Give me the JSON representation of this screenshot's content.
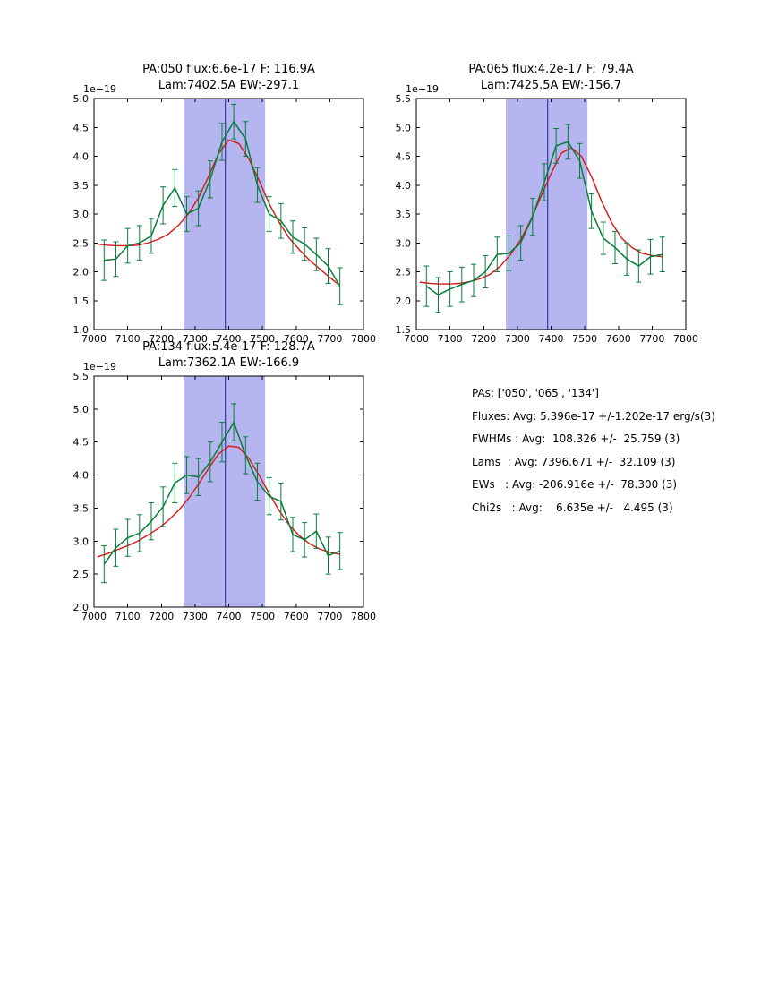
{
  "colors": {
    "data_line": "#077d3a",
    "fit_line": "#dc1414",
    "band": "#b5b5f0",
    "vline": "#1c1c9e",
    "frame": "#000000"
  },
  "chart_data": [
    {
      "type": "line",
      "title_line1": "PA:050 flux:6.6e-17 F: 116.9A",
      "title_line2": "Lam:7402.5A EW:-297.1",
      "offset_label": "1e−19",
      "xlim": [
        7000,
        7800
      ],
      "ylim": [
        1.0,
        5.0
      ],
      "xticks": [
        7000,
        7100,
        7200,
        7300,
        7400,
        7500,
        7600,
        7700,
        7800
      ],
      "xtick_labels": [
        "7000",
        "7100",
        "7200",
        "7300",
        "7400",
        "7500",
        "7600",
        "7700",
        "7800"
      ],
      "yticks": [
        1.0,
        1.5,
        2.0,
        2.5,
        3.0,
        3.5,
        4.0,
        4.5,
        5.0
      ],
      "ytick_labels": [
        "1.0",
        "1.5",
        "2.0",
        "2.5",
        "3.0",
        "3.5",
        "4.0",
        "4.5",
        "5.0"
      ],
      "band": [
        7266,
        7508
      ],
      "vline": 7390,
      "grid": false,
      "series": [
        {
          "name": "spectrum",
          "color_key": "data_line",
          "x": [
            7030,
            7065,
            7100,
            7135,
            7170,
            7205,
            7240,
            7275,
            7310,
            7345,
            7380,
            7415,
            7450,
            7485,
            7520,
            7555,
            7590,
            7625,
            7660,
            7695,
            7730
          ],
          "y": [
            2.2,
            2.22,
            2.45,
            2.5,
            2.62,
            3.15,
            3.45,
            3.0,
            3.1,
            3.6,
            4.25,
            4.6,
            4.3,
            3.5,
            3.0,
            2.88,
            2.6,
            2.48,
            2.3,
            2.1,
            1.75
          ],
          "yerr": [
            0.35,
            0.3,
            0.3,
            0.3,
            0.3,
            0.32,
            0.32,
            0.3,
            0.3,
            0.32,
            0.32,
            0.3,
            0.3,
            0.3,
            0.3,
            0.3,
            0.28,
            0.28,
            0.28,
            0.3,
            0.32
          ]
        },
        {
          "name": "gaussian-fit",
          "color_key": "fit_line",
          "x": [
            7010,
            7040,
            7070,
            7100,
            7130,
            7160,
            7190,
            7220,
            7250,
            7280,
            7310,
            7340,
            7370,
            7400,
            7430,
            7460,
            7490,
            7520,
            7550,
            7580,
            7610,
            7640,
            7670,
            7700,
            7730
          ],
          "y": [
            2.48,
            2.46,
            2.45,
            2.45,
            2.46,
            2.5,
            2.56,
            2.65,
            2.8,
            3.0,
            3.28,
            3.65,
            4.05,
            4.28,
            4.22,
            3.95,
            3.58,
            3.18,
            2.85,
            2.58,
            2.38,
            2.2,
            2.05,
            1.9,
            1.76
          ]
        }
      ]
    },
    {
      "type": "line",
      "title_line1": "PA:065 flux:4.2e-17 F: 79.4A",
      "title_line2": "Lam:7425.5A EW:-156.7",
      "offset_label": "1e−19",
      "xlim": [
        7000,
        7800
      ],
      "ylim": [
        1.5,
        5.5
      ],
      "xticks": [
        7000,
        7100,
        7200,
        7300,
        7400,
        7500,
        7600,
        7700,
        7800
      ],
      "xtick_labels": [
        "7000",
        "7100",
        "7200",
        "7300",
        "7400",
        "7500",
        "7600",
        "7700",
        "7800"
      ],
      "yticks": [
        1.5,
        2.0,
        2.5,
        3.0,
        3.5,
        4.0,
        4.5,
        5.0,
        5.5
      ],
      "ytick_labels": [
        "1.5",
        "2.0",
        "2.5",
        "3.0",
        "3.5",
        "4.0",
        "4.5",
        "5.0",
        "5.5"
      ],
      "band": [
        7266,
        7508
      ],
      "vline": 7390,
      "grid": false,
      "series": [
        {
          "name": "spectrum",
          "color_key": "data_line",
          "x": [
            7030,
            7065,
            7100,
            7135,
            7170,
            7205,
            7240,
            7275,
            7310,
            7345,
            7380,
            7415,
            7450,
            7485,
            7520,
            7555,
            7590,
            7625,
            7660,
            7695,
            7730
          ],
          "y": [
            2.25,
            2.1,
            2.2,
            2.28,
            2.35,
            2.5,
            2.8,
            2.82,
            3.0,
            3.45,
            4.05,
            4.68,
            4.75,
            4.42,
            3.55,
            3.08,
            2.92,
            2.72,
            2.6,
            2.76,
            2.8
          ],
          "yerr": [
            0.35,
            0.3,
            0.3,
            0.3,
            0.28,
            0.28,
            0.3,
            0.3,
            0.3,
            0.32,
            0.32,
            0.3,
            0.3,
            0.3,
            0.3,
            0.28,
            0.28,
            0.28,
            0.28,
            0.3,
            0.3
          ]
        },
        {
          "name": "gaussian-fit",
          "color_key": "fit_line",
          "x": [
            7010,
            7040,
            7070,
            7100,
            7130,
            7160,
            7190,
            7220,
            7250,
            7280,
            7310,
            7340,
            7370,
            7400,
            7430,
            7460,
            7490,
            7520,
            7550,
            7580,
            7610,
            7640,
            7670,
            7700,
            7730
          ],
          "y": [
            2.32,
            2.3,
            2.29,
            2.29,
            2.3,
            2.33,
            2.38,
            2.46,
            2.6,
            2.8,
            3.06,
            3.4,
            3.8,
            4.2,
            4.55,
            4.65,
            4.5,
            4.15,
            3.72,
            3.35,
            3.08,
            2.92,
            2.82,
            2.78,
            2.76
          ]
        }
      ]
    },
    {
      "type": "line",
      "title_line1": "PA:134 flux:5.4e-17 F: 128.7A",
      "title_line2": "Lam:7362.1A EW:-166.9",
      "offset_label": "1e−19",
      "xlim": [
        7000,
        7800
      ],
      "ylim": [
        2.0,
        5.5
      ],
      "xticks": [
        7000,
        7100,
        7200,
        7300,
        7400,
        7500,
        7600,
        7700,
        7800
      ],
      "xtick_labels": [
        "7000",
        "7100",
        "7200",
        "7300",
        "7400",
        "7500",
        "7600",
        "7700",
        "7800"
      ],
      "yticks": [
        2.0,
        2.5,
        3.0,
        3.5,
        4.0,
        4.5,
        5.0,
        5.5
      ],
      "ytick_labels": [
        "2.0",
        "2.5",
        "3.0",
        "3.5",
        "4.0",
        "4.5",
        "5.0",
        "5.5"
      ],
      "band": [
        7266,
        7508
      ],
      "vline": 7390,
      "grid": false,
      "series": [
        {
          "name": "spectrum",
          "color_key": "data_line",
          "x": [
            7030,
            7065,
            7100,
            7135,
            7170,
            7205,
            7240,
            7275,
            7310,
            7345,
            7380,
            7415,
            7450,
            7485,
            7520,
            7555,
            7590,
            7625,
            7660,
            7695,
            7730
          ],
          "y": [
            2.65,
            2.9,
            3.05,
            3.12,
            3.3,
            3.52,
            3.88,
            4.0,
            3.97,
            4.2,
            4.5,
            4.8,
            4.3,
            3.9,
            3.68,
            3.6,
            3.1,
            3.02,
            3.15,
            2.78,
            2.85
          ],
          "yerr": [
            0.28,
            0.28,
            0.28,
            0.28,
            0.28,
            0.3,
            0.3,
            0.28,
            0.28,
            0.3,
            0.3,
            0.28,
            0.28,
            0.28,
            0.28,
            0.28,
            0.26,
            0.26,
            0.26,
            0.28,
            0.28
          ]
        },
        {
          "name": "gaussian-fit",
          "color_key": "fit_line",
          "x": [
            7010,
            7040,
            7070,
            7100,
            7130,
            7160,
            7190,
            7220,
            7250,
            7280,
            7310,
            7340,
            7370,
            7400,
            7430,
            7460,
            7490,
            7520,
            7550,
            7580,
            7610,
            7640,
            7670,
            7700,
            7730
          ],
          "y": [
            2.76,
            2.81,
            2.87,
            2.93,
            3.0,
            3.09,
            3.19,
            3.31,
            3.46,
            3.64,
            3.86,
            4.1,
            4.32,
            4.44,
            4.42,
            4.25,
            4.0,
            3.72,
            3.46,
            3.24,
            3.08,
            2.96,
            2.88,
            2.83,
            2.8
          ]
        }
      ]
    }
  ],
  "summary": {
    "lines": [
      "PAs: ['050', '065', '134']",
      "Fluxes: Avg: 5.396e-17 +/-1.202e-17 erg/s(3)",
      "FWHMs : Avg:  108.326 +/-  25.759 (3)",
      "Lams  : Avg: 7396.671 +/-  32.109 (3)",
      "EWs   : Avg: -206.916e +/-  78.300 (3)",
      "Chi2s   : Avg:    6.635e +/-   4.495 (3)"
    ]
  }
}
